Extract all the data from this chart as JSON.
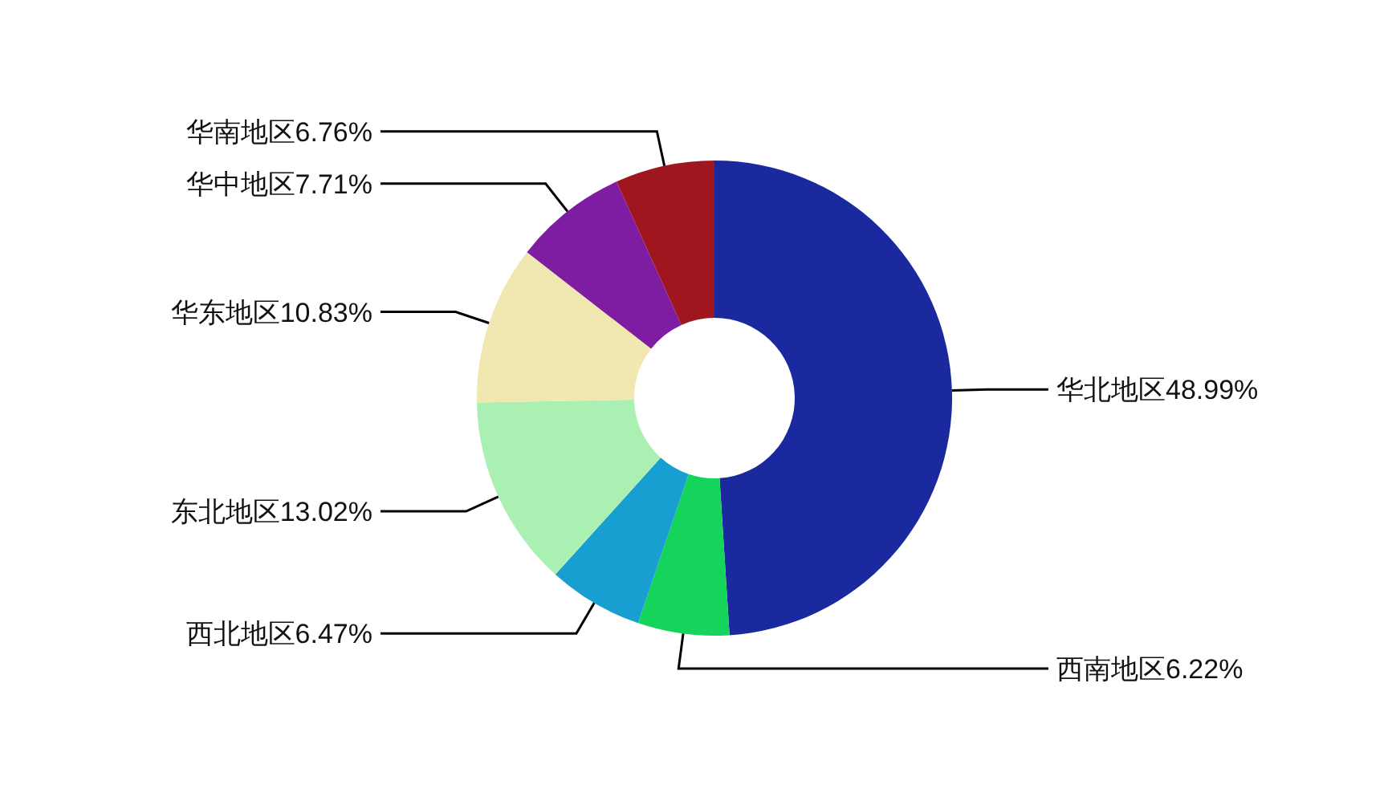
{
  "chart_data": {
    "type": "donut",
    "categories": [
      "华北地区",
      "西南地区",
      "西北地区",
      "东北地区",
      "华东地区",
      "华中地区",
      "华南地区"
    ],
    "values": [
      48.99,
      6.22,
      6.47,
      13.02,
      10.83,
      7.71,
      6.76
    ],
    "colors": [
      "#1a2a9e",
      "#14d45c",
      "#189fd2",
      "#aaf0b2",
      "#f0e8b0",
      "#7e1ca2",
      "#a0161e"
    ],
    "value_labels": [
      "48.99%",
      "6.22%",
      "6.47%",
      "13.02%",
      "10.83%",
      "7.71%",
      "6.76%"
    ]
  }
}
